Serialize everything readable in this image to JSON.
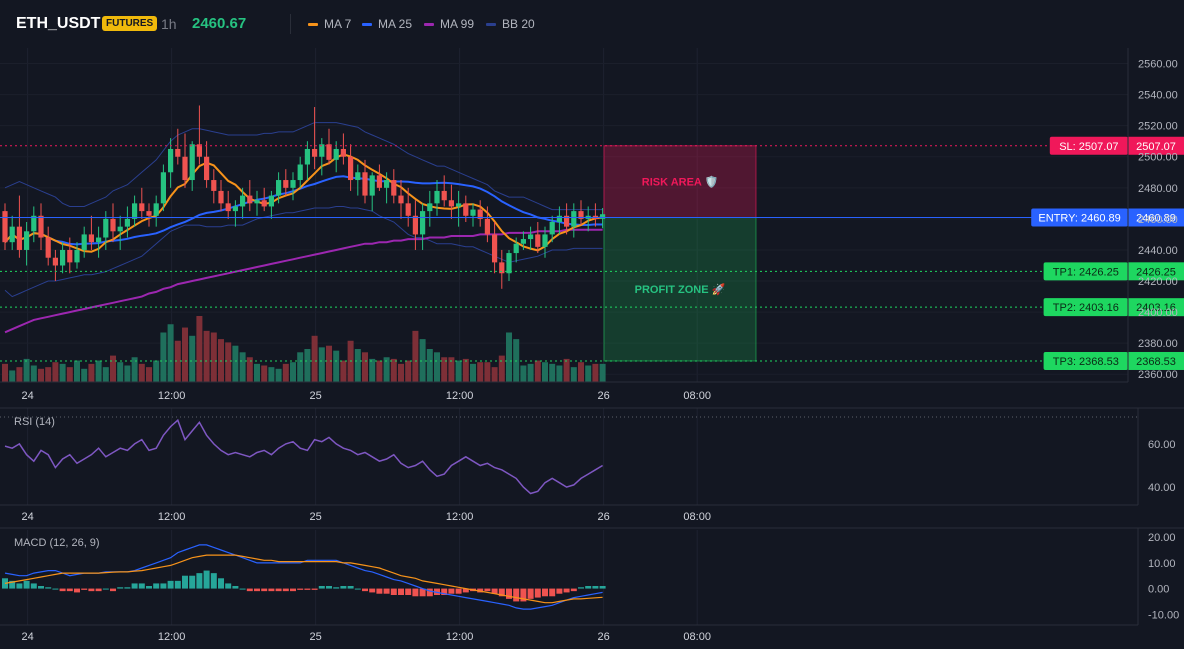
{
  "header": {
    "symbol": "ETH_USDT",
    "badge": "FUTURES",
    "timeframe": "1h",
    "last_price": "2460.67",
    "indicators": [
      {
        "label": "MA 7",
        "color": "#f7931a"
      },
      {
        "label": "MA 25",
        "color": "#2962ff"
      },
      {
        "label": "MA 99",
        "color": "#9c27b0"
      },
      {
        "label": "BB 20",
        "color": "#2a3f8f"
      }
    ]
  },
  "colors": {
    "up": "#26c281",
    "down": "#ef5350",
    "sl": "#f0185a",
    "tp": "#1ed760",
    "entry": "#2962ff",
    "rsi": "#7e57c2",
    "macd": "#2962ff",
    "signal": "#f7931a"
  },
  "chart_data": [
    {
      "type": "candlestick",
      "title": "",
      "ylim": [
        2355,
        2570
      ],
      "y_ticks": [
        "2560.00",
        "2540.00",
        "2520.00",
        "2500.00",
        "2480.00",
        "2460.00",
        "2440.00",
        "2420.00",
        "2400.00",
        "2380.00",
        "2360.00"
      ],
      "x_ticks": [
        {
          "i": 3,
          "label": "24"
        },
        {
          "i": 23,
          "label": "12:00"
        },
        {
          "i": 43,
          "label": "25"
        },
        {
          "i": 63,
          "label": "12:00"
        },
        {
          "i": 83,
          "label": "26"
        },
        {
          "i": 96,
          "label": "08:00"
        }
      ],
      "ohlc": [
        [
          2465,
          2470,
          2440,
          2445
        ],
        [
          2445,
          2462,
          2440,
          2455
        ],
        [
          2455,
          2475,
          2435,
          2440
        ],
        [
          2440,
          2458,
          2430,
          2452
        ],
        [
          2452,
          2468,
          2445,
          2462
        ],
        [
          2462,
          2470,
          2440,
          2448
        ],
        [
          2448,
          2455,
          2430,
          2435
        ],
        [
          2435,
          2440,
          2420,
          2430
        ],
        [
          2430,
          2445,
          2425,
          2440
        ],
        [
          2440,
          2448,
          2425,
          2432
        ],
        [
          2432,
          2445,
          2428,
          2440
        ],
        [
          2440,
          2455,
          2435,
          2450
        ],
        [
          2450,
          2462,
          2440,
          2445
        ],
        [
          2445,
          2455,
          2435,
          2448
        ],
        [
          2448,
          2465,
          2440,
          2460
        ],
        [
          2460,
          2470,
          2445,
          2452
        ],
        [
          2452,
          2462,
          2440,
          2455
        ],
        [
          2455,
          2468,
          2448,
          2460
        ],
        [
          2460,
          2475,
          2455,
          2470
        ],
        [
          2470,
          2480,
          2460,
          2465
        ],
        [
          2465,
          2470,
          2455,
          2462
        ],
        [
          2462,
          2475,
          2455,
          2470
        ],
        [
          2470,
          2495,
          2465,
          2490
        ],
        [
          2490,
          2512,
          2480,
          2505
        ],
        [
          2505,
          2518,
          2495,
          2500
        ],
        [
          2500,
          2515,
          2480,
          2485
        ],
        [
          2485,
          2510,
          2478,
          2508
        ],
        [
          2508,
          2533,
          2495,
          2500
        ],
        [
          2500,
          2510,
          2480,
          2485
        ],
        [
          2485,
          2492,
          2470,
          2478
        ],
        [
          2478,
          2485,
          2465,
          2470
        ],
        [
          2470,
          2478,
          2460,
          2465
        ],
        [
          2465,
          2472,
          2455,
          2468
        ],
        [
          2468,
          2480,
          2460,
          2475
        ],
        [
          2475,
          2485,
          2465,
          2470
        ],
        [
          2470,
          2478,
          2462,
          2472
        ],
        [
          2472,
          2480,
          2465,
          2468
        ],
        [
          2468,
          2478,
          2460,
          2475
        ],
        [
          2475,
          2490,
          2470,
          2485
        ],
        [
          2485,
          2492,
          2475,
          2480
        ],
        [
          2480,
          2490,
          2472,
          2485
        ],
        [
          2485,
          2500,
          2480,
          2495
        ],
        [
          2495,
          2510,
          2485,
          2505
        ],
        [
          2505,
          2532,
          2492,
          2500
        ],
        [
          2500,
          2512,
          2488,
          2508
        ],
        [
          2508,
          2518,
          2495,
          2498
        ],
        [
          2498,
          2510,
          2490,
          2505
        ],
        [
          2505,
          2515,
          2495,
          2500
        ],
        [
          2500,
          2508,
          2478,
          2485
        ],
        [
          2485,
          2495,
          2475,
          2490
        ],
        [
          2490,
          2498,
          2470,
          2475
        ],
        [
          2475,
          2490,
          2465,
          2488
        ],
        [
          2488,
          2495,
          2478,
          2480
        ],
        [
          2480,
          2490,
          2470,
          2485
        ],
        [
          2485,
          2492,
          2470,
          2475
        ],
        [
          2475,
          2485,
          2460,
          2470
        ],
        [
          2470,
          2480,
          2455,
          2462
        ],
        [
          2462,
          2472,
          2440,
          2450
        ],
        [
          2450,
          2470,
          2440,
          2465
        ],
        [
          2465,
          2478,
          2455,
          2470
        ],
        [
          2470,
          2485,
          2462,
          2478
        ],
        [
          2478,
          2488,
          2468,
          2472
        ],
        [
          2472,
          2482,
          2460,
          2468
        ],
        [
          2468,
          2478,
          2455,
          2470
        ],
        [
          2470,
          2475,
          2458,
          2462
        ],
        [
          2462,
          2470,
          2455,
          2466
        ],
        [
          2466,
          2472,
          2455,
          2460
        ],
        [
          2460,
          2468,
          2445,
          2450
        ],
        [
          2450,
          2458,
          2425,
          2432
        ],
        [
          2432,
          2440,
          2415,
          2425
        ],
        [
          2425,
          2440,
          2420,
          2438
        ],
        [
          2438,
          2448,
          2432,
          2444
        ],
        [
          2444,
          2452,
          2440,
          2447
        ],
        [
          2447,
          2455,
          2440,
          2450
        ],
        [
          2450,
          2458,
          2438,
          2442
        ],
        [
          2442,
          2455,
          2435,
          2450
        ],
        [
          2450,
          2462,
          2445,
          2458
        ],
        [
          2458,
          2468,
          2450,
          2462
        ],
        [
          2462,
          2470,
          2450,
          2455
        ],
        [
          2455,
          2470,
          2448,
          2465
        ],
        [
          2465,
          2472,
          2456,
          2460
        ],
        [
          2460,
          2468,
          2452,
          2462
        ],
        [
          2462,
          2470,
          2455,
          2460
        ],
        [
          2460,
          2467,
          2454,
          2463
        ]
      ],
      "volume": [
        22,
        14,
        18,
        28,
        20,
        16,
        18,
        24,
        22,
        18,
        26,
        16,
        22,
        26,
        18,
        32,
        24,
        20,
        30,
        22,
        18,
        26,
        60,
        70,
        50,
        66,
        56,
        80,
        62,
        60,
        52,
        48,
        44,
        36,
        30,
        22,
        20,
        18,
        16,
        22,
        24,
        36,
        40,
        56,
        42,
        44,
        38,
        26,
        50,
        40,
        36,
        28,
        26,
        30,
        28,
        22,
        26,
        62,
        52,
        40,
        36,
        30,
        30,
        26,
        28,
        22,
        24,
        24,
        18,
        32,
        60,
        52,
        20,
        22,
        26,
        24,
        22,
        20,
        28,
        18,
        24,
        20,
        22,
        22
      ]
    },
    {
      "type": "line",
      "title": "RSI (14)",
      "ylim": [
        34,
        72
      ],
      "y_ticks": [
        "60.00",
        "40.00"
      ],
      "x_ticks": [
        "24",
        "12:00",
        "25",
        "12:00",
        "26",
        "08:00"
      ],
      "values": [
        59,
        58,
        60,
        55,
        52,
        57,
        55,
        49,
        53,
        55,
        51,
        53,
        55,
        58,
        54,
        56,
        58,
        57,
        60,
        62,
        57,
        58,
        64,
        68,
        71,
        62,
        66,
        70,
        64,
        60,
        57,
        55,
        56,
        55,
        54,
        56,
        57,
        55,
        58,
        60,
        61,
        58,
        57,
        62,
        61,
        63,
        60,
        58,
        57,
        55,
        56,
        54,
        52,
        53,
        55,
        51,
        49,
        50,
        52,
        48,
        45,
        46,
        50,
        52,
        54,
        52,
        50,
        51,
        49,
        48,
        46,
        44,
        40,
        37,
        38,
        42,
        44,
        42,
        40,
        41,
        44,
        46,
        48,
        50
      ]
    },
    {
      "type": "bar_line",
      "title": "MACD (12, 26, 9)",
      "ylim": [
        -13,
        22
      ],
      "y_ticks": [
        "20.00",
        "10.00",
        "0.00",
        "-10.00"
      ],
      "x_ticks": [
        "24",
        "12:00",
        "25",
        "12:00",
        "26",
        "08:00"
      ],
      "histogram": [
        4,
        3,
        2,
        3,
        2,
        1,
        0.5,
        0,
        -1,
        -1,
        -1.5,
        -0.5,
        -1,
        -1,
        0,
        -1,
        0.5,
        0.5,
        2,
        2,
        1,
        2,
        2,
        3,
        3,
        5,
        5,
        6,
        7,
        6,
        4,
        2,
        1,
        0,
        -1,
        -1,
        -1,
        -1,
        -1,
        -1,
        -1,
        -0.5,
        -0.5,
        -0.5,
        1,
        1,
        0.5,
        1,
        1,
        0,
        -1,
        -1.5,
        -2,
        -2,
        -2.5,
        -2.5,
        -2.5,
        -3,
        -3,
        -3,
        -2.5,
        -2.5,
        -2,
        -2,
        -1.5,
        -1,
        -1.5,
        -1,
        -2,
        -3,
        -4,
        -5,
        -5,
        -4,
        -3.5,
        -3,
        -3,
        -2,
        -1.5,
        -1,
        0.5,
        1,
        1,
        1
      ]
    }
  ],
  "macd_line": [
    6,
    5.5,
    5,
    5,
    6,
    6.5,
    7,
    7,
    6,
    5,
    5.5,
    6,
    6,
    6,
    6.5,
    6.5,
    6.5,
    6.5,
    7,
    8,
    9,
    10,
    11,
    12,
    14,
    15,
    16,
    17,
    17,
    16,
    15,
    14,
    13,
    12,
    11,
    10,
    10,
    10,
    10,
    10,
    10,
    10,
    11,
    11,
    11,
    11,
    11,
    10,
    9,
    8,
    7,
    6.5,
    5.5,
    4.5,
    3.5,
    3,
    2,
    1,
    0,
    -1,
    -1.5,
    -2,
    -2.5,
    -3,
    -3.5,
    -4,
    -4.5,
    -5,
    -5.5,
    -6,
    -6.5,
    -7.5,
    -8,
    -8,
    -7.5,
    -7,
    -6.5,
    -5.5,
    -4.5,
    -3.5,
    -3,
    -2.5,
    -2,
    -1.5
  ],
  "signal_line": [
    2,
    2.5,
    3,
    3.5,
    4,
    4.5,
    5,
    5.5,
    6,
    6,
    6,
    6,
    6,
    6,
    6.2,
    6.4,
    6.5,
    6.5,
    6.8,
    7,
    7.5,
    8,
    8.5,
    9,
    10,
    11,
    12,
    12.5,
    13,
    13,
    13,
    13,
    13,
    12.5,
    12,
    11.5,
    11,
    11,
    10.5,
    10.5,
    10.5,
    10.5,
    10.5,
    10.5,
    10.5,
    10.5,
    10.5,
    10,
    10,
    9.5,
    9,
    8.5,
    8,
    7,
    6,
    5,
    4.5,
    4,
    3,
    2.5,
    2,
    1.5,
    1,
    0.5,
    0,
    -0.5,
    -1,
    -1.5,
    -2,
    -2.5,
    -3,
    -3.5,
    -4,
    -4.5,
    -5,
    -5.5,
    -5.5,
    -5,
    -4.5,
    -4,
    -4,
    -3.8,
    -3.6,
    -3.4
  ],
  "ma99": [
    2387,
    2389,
    2391,
    2393,
    2395,
    2396,
    2397,
    2398,
    2399,
    2400,
    2401,
    2402,
    2403,
    2404,
    2405,
    2406,
    2407,
    2408,
    2409,
    2410,
    2412,
    2413,
    2415,
    2416,
    2418,
    2419,
    2420,
    2421,
    2422,
    2423,
    2424,
    2425,
    2426,
    2427,
    2428,
    2429,
    2430,
    2431,
    2432,
    2433,
    2434,
    2435,
    2436,
    2437,
    2438,
    2439,
    2440,
    2441,
    2442,
    2443,
    2444,
    2444,
    2445,
    2445,
    2446,
    2446,
    2447,
    2447,
    2447,
    2448,
    2448,
    2448,
    2449,
    2449,
    2449,
    2449,
    2450,
    2450,
    2450,
    2450,
    2451,
    2451,
    2451,
    2451,
    2452,
    2452,
    2452,
    2452,
    2453,
    2453,
    2453,
    2453,
    2453,
    2453
  ],
  "bb_upper": [
    2480,
    2482,
    2484,
    2482,
    2480,
    2478,
    2476,
    2474,
    2470,
    2468,
    2468,
    2468,
    2470,
    2472,
    2474,
    2478,
    2480,
    2482,
    2486,
    2490,
    2494,
    2498,
    2504,
    2510,
    2514,
    2516,
    2518,
    2518,
    2517,
    2516,
    2515,
    2514,
    2514,
    2514,
    2514,
    2514,
    2515,
    2515,
    2516,
    2516,
    2516,
    2518,
    2520,
    2522,
    2522,
    2522,
    2522,
    2521,
    2520,
    2519,
    2516,
    2514,
    2512,
    2510,
    2508,
    2505,
    2502,
    2500,
    2498,
    2496,
    2494,
    2494,
    2492,
    2490,
    2488,
    2486,
    2484,
    2482,
    2478,
    2476,
    2474,
    2474,
    2474,
    2472,
    2470,
    2468,
    2466,
    2466,
    2466,
    2466,
    2466,
    2466,
    2466,
    2466
  ],
  "bb_lower": [
    2414,
    2410,
    2412,
    2414,
    2416,
    2418,
    2420,
    2420,
    2421,
    2422,
    2423,
    2424,
    2424,
    2425,
    2426,
    2428,
    2430,
    2432,
    2434,
    2436,
    2440,
    2444,
    2448,
    2452,
    2454,
    2456,
    2456,
    2456,
    2455,
    2455,
    2455,
    2456,
    2456,
    2456,
    2458,
    2460,
    2461,
    2462,
    2463,
    2464,
    2464,
    2465,
    2466,
    2467,
    2467,
    2467,
    2468,
    2468,
    2467,
    2467,
    2466,
    2465,
    2462,
    2460,
    2458,
    2454,
    2450,
    2448,
    2448,
    2446,
    2444,
    2444,
    2444,
    2443,
    2442,
    2442,
    2440,
    2438,
    2436,
    2434,
    2432,
    2433,
    2434,
    2435,
    2436,
    2438,
    2440,
    2440,
    2440,
    2441,
    2441,
    2441,
    2441,
    2441
  ],
  "levels": [
    {
      "key": "sl",
      "label": "SL: 2507.07",
      "price_label": "2507.07",
      "value": 2507.07
    },
    {
      "key": "entry",
      "label": "ENTRY: 2460.89",
      "price_label": "2460.89",
      "value": 2460.89
    },
    {
      "key": "tp",
      "label": "TP1: 2426.25",
      "price_label": "2426.25",
      "value": 2426.25
    },
    {
      "key": "tp",
      "label": "TP2: 2403.16",
      "price_label": "2403.16",
      "value": 2403.16
    },
    {
      "key": "tp",
      "label": "TP3: 2368.53",
      "price_label": "2368.53",
      "value": 2368.53
    }
  ],
  "zones": {
    "risk_label": "RISK AREA 🛡️",
    "profit_label": "PROFIT ZONE 🚀",
    "risk_top": 2507.07,
    "risk_bottom": 2460.89,
    "profit_top": 2460.89,
    "profit_bottom": 2368.53
  }
}
